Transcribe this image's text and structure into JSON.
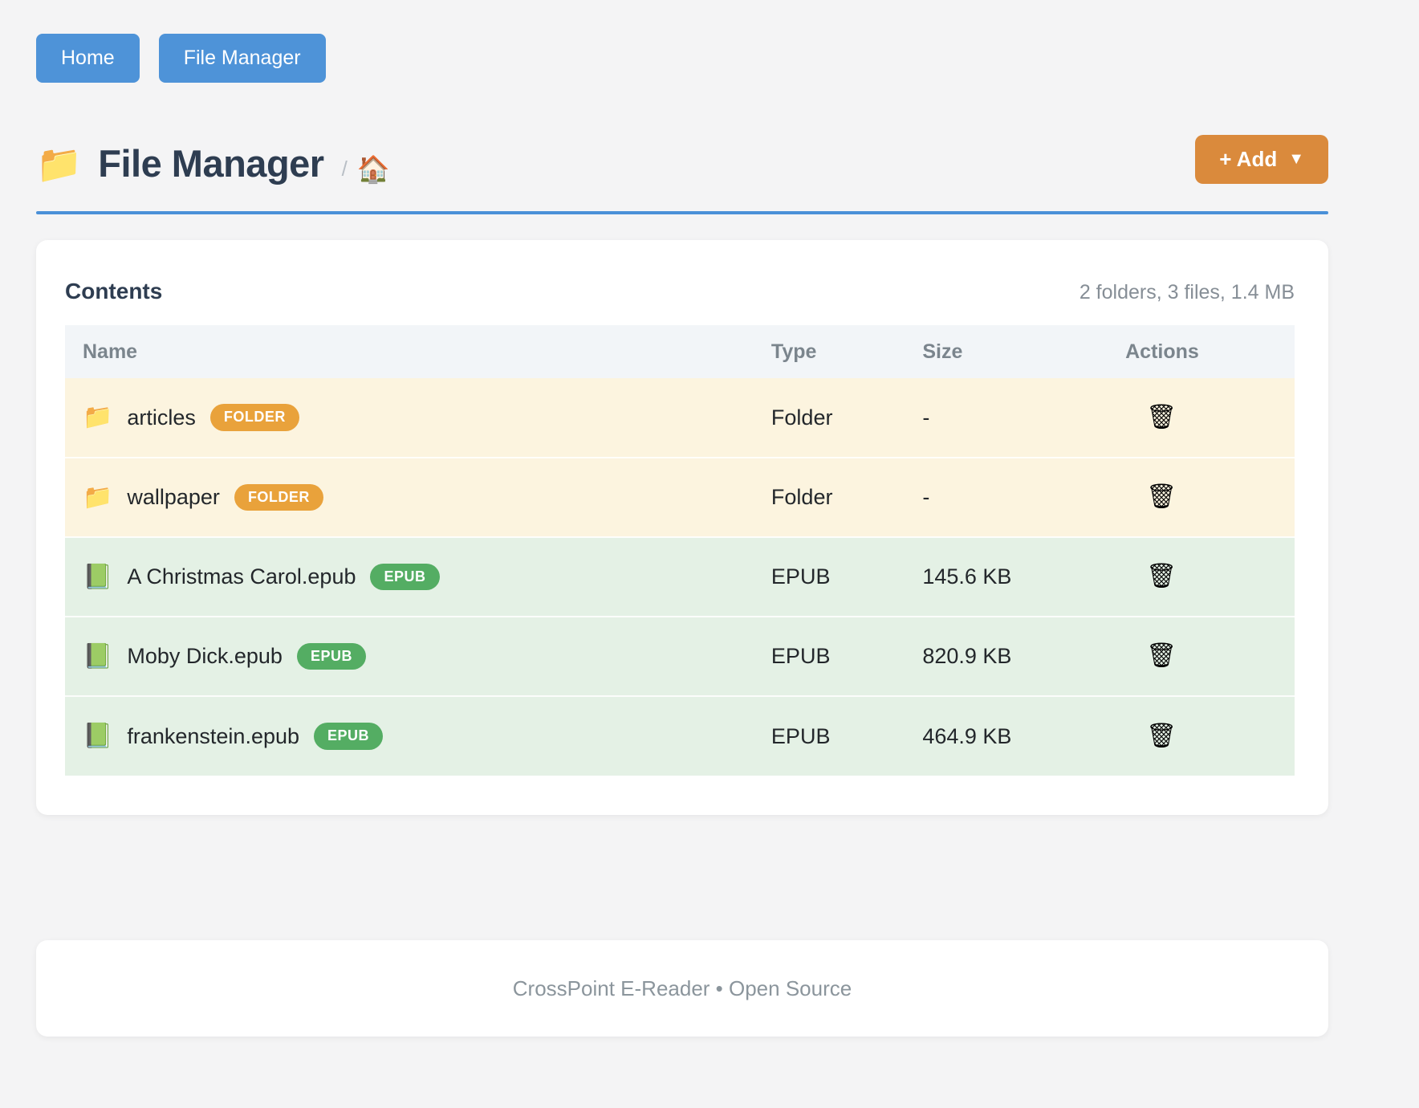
{
  "nav": {
    "buttons": [
      {
        "label": "Home"
      },
      {
        "label": "File Manager"
      }
    ]
  },
  "header": {
    "icon": "📁",
    "title": "File Manager",
    "breadcrumb": {
      "separator": "/",
      "home_icon": "🏠"
    },
    "add_button": {
      "label": "+ Add",
      "caret": "▼"
    }
  },
  "contents": {
    "title": "Contents",
    "summary": "2 folders, 3 files, 1.4 MB",
    "columns": [
      "Name",
      "Type",
      "Size",
      "Actions"
    ],
    "action_icon": "🗑",
    "rows": [
      {
        "icon": "📁",
        "name": "articles",
        "badge": "FOLDER",
        "type": "Folder",
        "size": "-"
      },
      {
        "icon": "📁",
        "name": "wallpaper",
        "badge": "FOLDER",
        "type": "Folder",
        "size": "-"
      },
      {
        "icon": "📗",
        "name": "A Christmas Carol.epub",
        "badge": "EPUB",
        "type": "EPUB",
        "size": "145.6 KB"
      },
      {
        "icon": "📗",
        "name": "Moby Dick.epub",
        "badge": "EPUB",
        "type": "EPUB",
        "size": "820.9 KB"
      },
      {
        "icon": "📗",
        "name": "frankenstein.epub",
        "badge": "EPUB",
        "type": "EPUB",
        "size": "464.9 KB"
      }
    ]
  },
  "footer": {
    "text": "CrossPoint E-Reader • Open Source"
  },
  "colors": {
    "accent_blue": "#4e93d8",
    "accent_orange": "#da8a3c",
    "badge_folder": "#e9a23b",
    "badge_epub": "#54ad63",
    "row_folder_bg": "#fcf4df",
    "row_epub_bg": "#e4f1e5",
    "page_bg": "#f4f4f5"
  }
}
